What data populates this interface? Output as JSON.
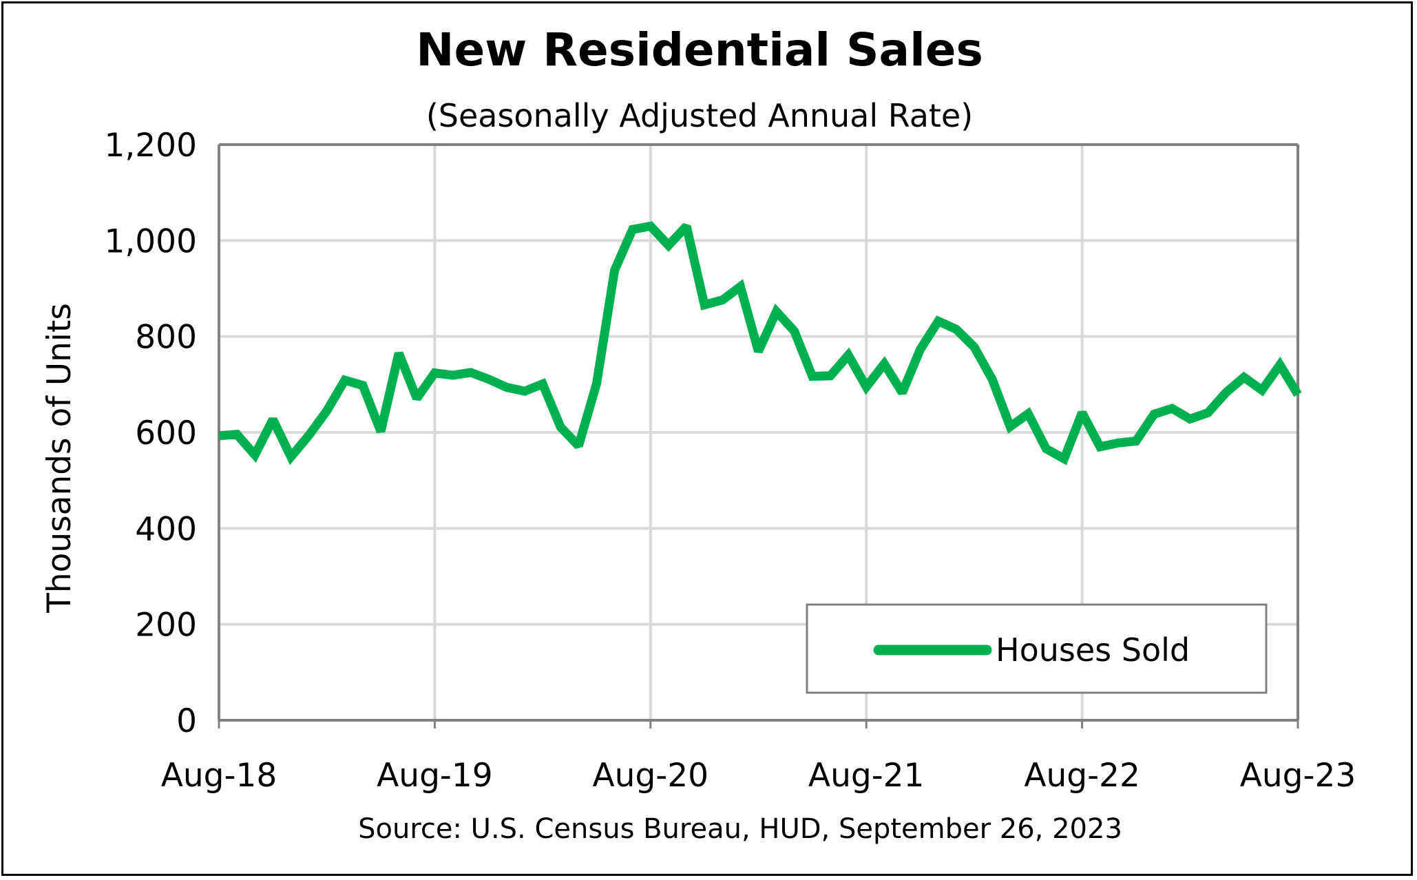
{
  "chart_data": {
    "type": "line",
    "title": "New Residential Sales",
    "subtitle": "(Seasonally Adjusted Annual Rate)",
    "ylabel": "Thousands of Units",
    "xlabel": "",
    "source": "Source:  U.S. Census Bureau, HUD, September 26, 2023",
    "ylim": [
      0,
      1200
    ],
    "yticks": [
      "0",
      "200",
      "400",
      "600",
      "800",
      "1,000",
      "1,200"
    ],
    "xticks": [
      "Aug-18",
      "Aug-19",
      "Aug-20",
      "Aug-21",
      "Aug-22",
      "Aug-23"
    ],
    "grid": true,
    "legend_position": "bottom-right",
    "colors": {
      "series": "#00b050",
      "grid": "#d9d9d9",
      "axis": "#808080"
    },
    "x": [
      "Aug-18",
      "Sep-18",
      "Oct-18",
      "Nov-18",
      "Dec-18",
      "Jan-19",
      "Feb-19",
      "Mar-19",
      "Apr-19",
      "May-19",
      "Jun-19",
      "Jul-19",
      "Aug-19",
      "Sep-19",
      "Oct-19",
      "Nov-19",
      "Dec-19",
      "Jan-20",
      "Feb-20",
      "Mar-20",
      "Apr-20",
      "May-20",
      "Jun-20",
      "Jul-20",
      "Aug-20",
      "Sep-20",
      "Oct-20",
      "Nov-20",
      "Dec-20",
      "Jan-21",
      "Feb-21",
      "Mar-21",
      "Apr-21",
      "May-21",
      "Jun-21",
      "Jul-21",
      "Aug-21",
      "Sep-21",
      "Oct-21",
      "Nov-21",
      "Dec-21",
      "Jan-22",
      "Feb-22",
      "Mar-22",
      "Apr-22",
      "May-22",
      "Jun-22",
      "Jul-22",
      "Aug-22",
      "Sep-22",
      "Oct-22",
      "Nov-22",
      "Dec-22",
      "Jan-23",
      "Feb-23",
      "Mar-23",
      "Apr-23",
      "May-23",
      "Jun-23",
      "Jul-23",
      "Aug-23"
    ],
    "series": [
      {
        "name": "Houses Sold",
        "values": [
          593,
          596,
          553,
          627,
          549,
          594,
          645,
          709,
          698,
          602,
          765,
          671,
          724,
          719,
          725,
          711,
          694,
          686,
          701,
          611,
          572,
          702,
          938,
          1023,
          1030,
          990,
          1030,
          866,
          876,
          904,
          769,
          852,
          811,
          717,
          718,
          761,
          695,
          743,
          683,
          773,
          832,
          815,
          778,
          711,
          612,
          639,
          566,
          545,
          641,
          570,
          578,
          582,
          638,
          650,
          628,
          641,
          683,
          715,
          688,
          741,
          679
        ]
      }
    ]
  }
}
